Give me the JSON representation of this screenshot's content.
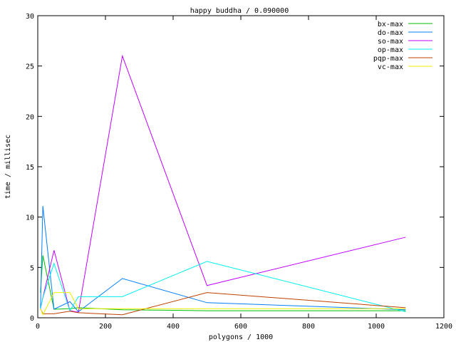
{
  "chart_data": {
    "type": "line",
    "title": "happy buddha / 0.090000",
    "xlabel": "polygons / 1000",
    "ylabel": "time / millisec",
    "xlim": [
      0,
      1200
    ],
    "ylim": [
      0,
      30
    ],
    "xticks": [
      0,
      200,
      400,
      600,
      800,
      1000,
      1200
    ],
    "yticks": [
      0,
      5,
      10,
      15,
      20,
      25,
      30
    ],
    "grid": false,
    "legend_position": "top-right",
    "x": [
      8,
      15,
      48,
      95,
      120,
      250,
      500,
      1087
    ],
    "series": [
      {
        "name": "bx-max",
        "color": "#00c000",
        "values": [
          2.5,
          6.2,
          0.85,
          0.9,
          1.0,
          0.8,
          0.7,
          0.7
        ]
      },
      {
        "name": "do-max",
        "color": "#0080ff",
        "values": [
          0.9,
          11.1,
          0.85,
          1.6,
          0.6,
          3.9,
          1.5,
          0.8
        ]
      },
      {
        "name": "so-max",
        "color": "#c000ff",
        "values": [
          0.9,
          2.0,
          6.7,
          0.7,
          0.55,
          26.0,
          3.2,
          8.0
        ]
      },
      {
        "name": "op-max",
        "color": "#00eeee",
        "values": [
          0.9,
          2.0,
          5.4,
          0.7,
          2.1,
          2.1,
          5.6,
          0.6
        ]
      },
      {
        "name": "pqp-max",
        "color": "#c04000",
        "values": [
          0.9,
          0.4,
          0.4,
          0.65,
          0.5,
          0.3,
          2.5,
          1.0
        ]
      },
      {
        "name": "vc-max",
        "color": "#eeee00",
        "values": [
          0.9,
          0.3,
          2.5,
          2.5,
          0.9,
          0.9,
          0.9,
          0.9
        ]
      }
    ]
  }
}
